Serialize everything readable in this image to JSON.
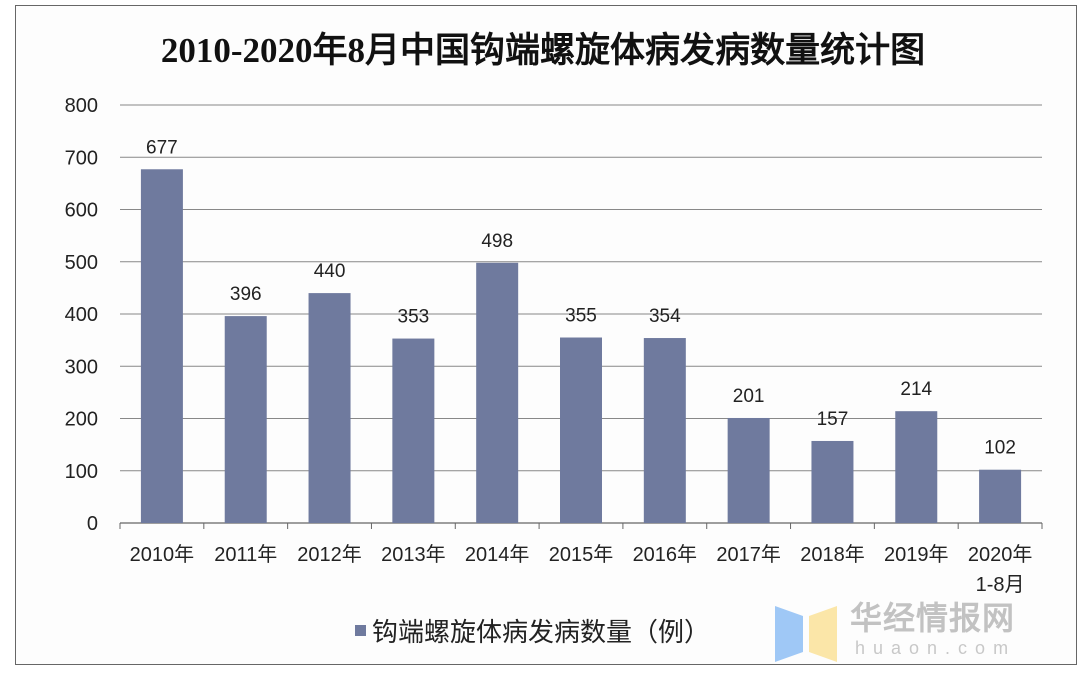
{
  "chart_data": {
    "type": "bar",
    "title": "2010-2020年8月中国钩端螺旋体病发病数量统计图",
    "categories": [
      "2010年",
      "2011年",
      "2012年",
      "2013年",
      "2014年",
      "2015年",
      "2016年",
      "2017年",
      "2018年",
      "2019年",
      "2020年 1-8月"
    ],
    "category_lines": [
      [
        "2010年"
      ],
      [
        "2011年"
      ],
      [
        "2012年"
      ],
      [
        "2013年"
      ],
      [
        "2014年"
      ],
      [
        "2015年"
      ],
      [
        "2016年"
      ],
      [
        "2017年"
      ],
      [
        "2018年"
      ],
      [
        "2019年"
      ],
      [
        "2020年",
        "1-8月"
      ]
    ],
    "series": [
      {
        "name": "钩端螺旋体病发病数量（例）",
        "values": [
          677,
          396,
          440,
          353,
          498,
          355,
          354,
          201,
          157,
          214,
          102
        ],
        "color": "#6f7a9e"
      }
    ],
    "ylim": [
      0,
      800
    ],
    "yticks": [
      0,
      100,
      200,
      300,
      400,
      500,
      600,
      700,
      800
    ],
    "grid": true,
    "legend": "bottom",
    "data_labels": true
  },
  "watermark": {
    "cn": "华经情报网",
    "en": "huaon.com"
  }
}
